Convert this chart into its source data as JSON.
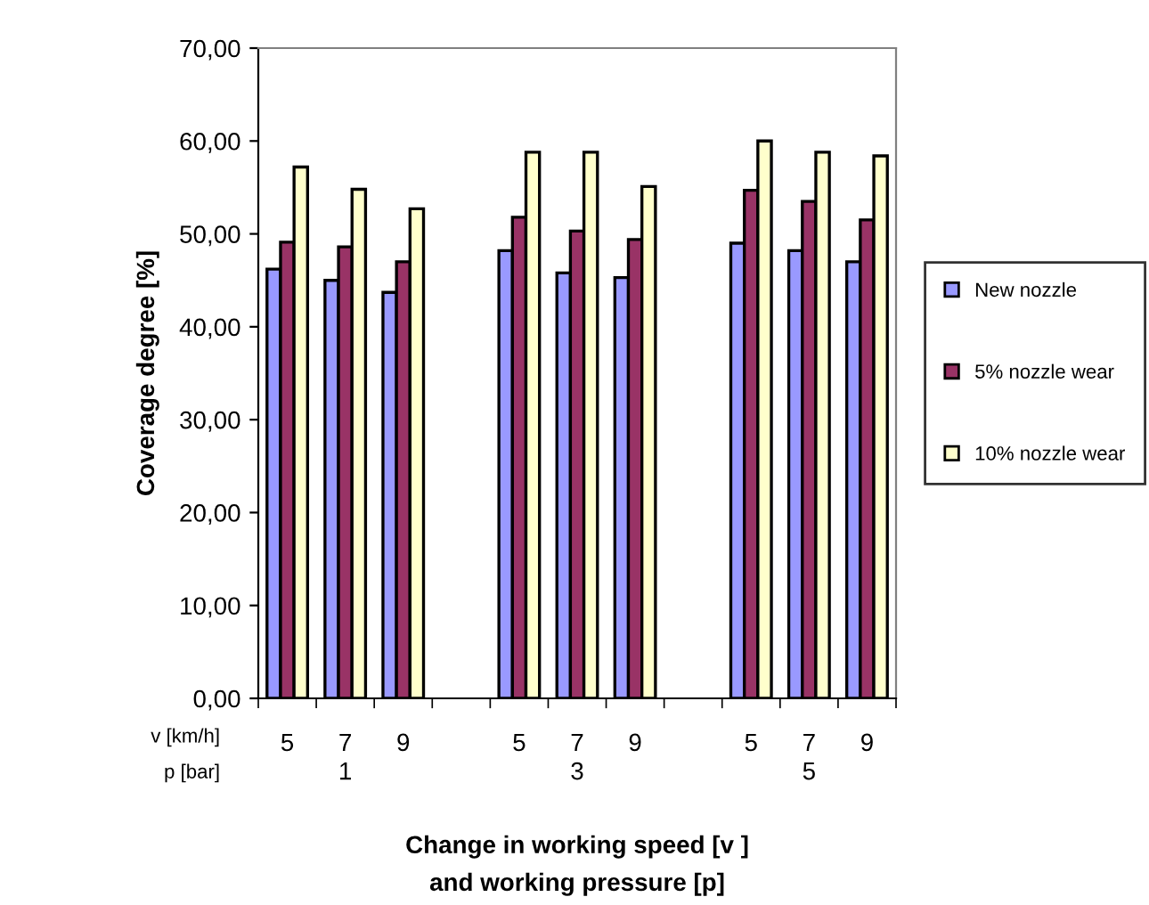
{
  "chart_data": {
    "type": "bar",
    "xlabel": "Change in working speed [v ]\nand working pressure [p]",
    "ylabel": "Coverage degree [%]",
    "categories": [
      "5",
      "7",
      "9",
      null,
      "5",
      "7",
      "9",
      null,
      "5",
      "7",
      "9"
    ],
    "series": [
      {
        "name": "New nozzle",
        "color": "#9999ff",
        "values": [
          46.2,
          45.0,
          43.7,
          null,
          48.2,
          45.8,
          45.3,
          null,
          49.0,
          48.2,
          47.0
        ]
      },
      {
        "name": "5% nozzle wear",
        "color": "#993366",
        "values": [
          49.1,
          48.6,
          47.0,
          null,
          51.8,
          50.3,
          49.4,
          null,
          54.7,
          53.5,
          51.5
        ]
      },
      {
        "name": "10% nozzle wear",
        "color": "#ffffcc",
        "values": [
          57.2,
          54.8,
          52.7,
          null,
          58.8,
          58.8,
          55.1,
          null,
          60.0,
          58.8,
          58.4
        ]
      }
    ],
    "ylim": [
      0,
      70
    ],
    "yticks": [
      {
        "value": 0,
        "label": "0,00"
      },
      {
        "value": 10,
        "label": "10,00"
      },
      {
        "value": 20,
        "label": "20,00"
      },
      {
        "value": 30,
        "label": "30,00"
      },
      {
        "value": 40,
        "label": "40,00"
      },
      {
        "value": 50,
        "label": "50,00"
      },
      {
        "value": 60,
        "label": "60,00"
      },
      {
        "value": 70,
        "label": "70,00"
      }
    ],
    "annotations": [
      "1",
      "3",
      "5",
      "v [km/h]",
      "p [bar]"
    ],
    "legend": "right",
    "grid": false
  }
}
